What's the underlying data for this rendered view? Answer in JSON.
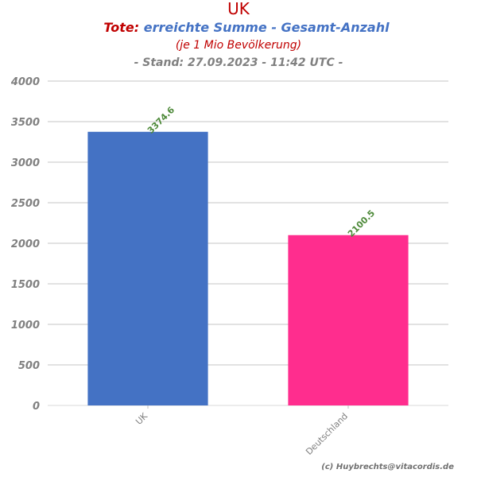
{
  "header": {
    "title": "UK",
    "subtitle_prefix": "Tote:",
    "subtitle_rest": " erreichte Summe - Gesamt-Anzahl",
    "subtitle2": "(je 1 Mio Bevölkerung)",
    "stand": "- Stand: 27.09.2023 - 11:42 UTC -"
  },
  "credit": "(c) Huybrechts@vitacordis.de",
  "colors": {
    "title": "#c00000",
    "subtitle_rest": "#4472c4",
    "grid": "#d9d9d9",
    "data_label": "#4e8a3a"
  },
  "chart_data": {
    "type": "bar",
    "title": "UK",
    "categories": [
      "UK",
      "Deutschland"
    ],
    "values": [
      3374.6,
      2100.5
    ],
    "value_labels": [
      "3374.6",
      "2100.5"
    ],
    "bar_colors": [
      "#4472c4",
      "#ff2d8e"
    ],
    "xlabel": "",
    "ylabel": "",
    "ylim": [
      0,
      4000
    ],
    "yticks": [
      0,
      500,
      1000,
      1500,
      2000,
      2500,
      3000,
      3500,
      4000
    ],
    "ytick_labels": [
      "0",
      "500",
      "1000",
      "1500",
      "2000",
      "2500",
      "3000",
      "3500",
      "4000"
    ],
    "grid": true,
    "legend": "none"
  }
}
